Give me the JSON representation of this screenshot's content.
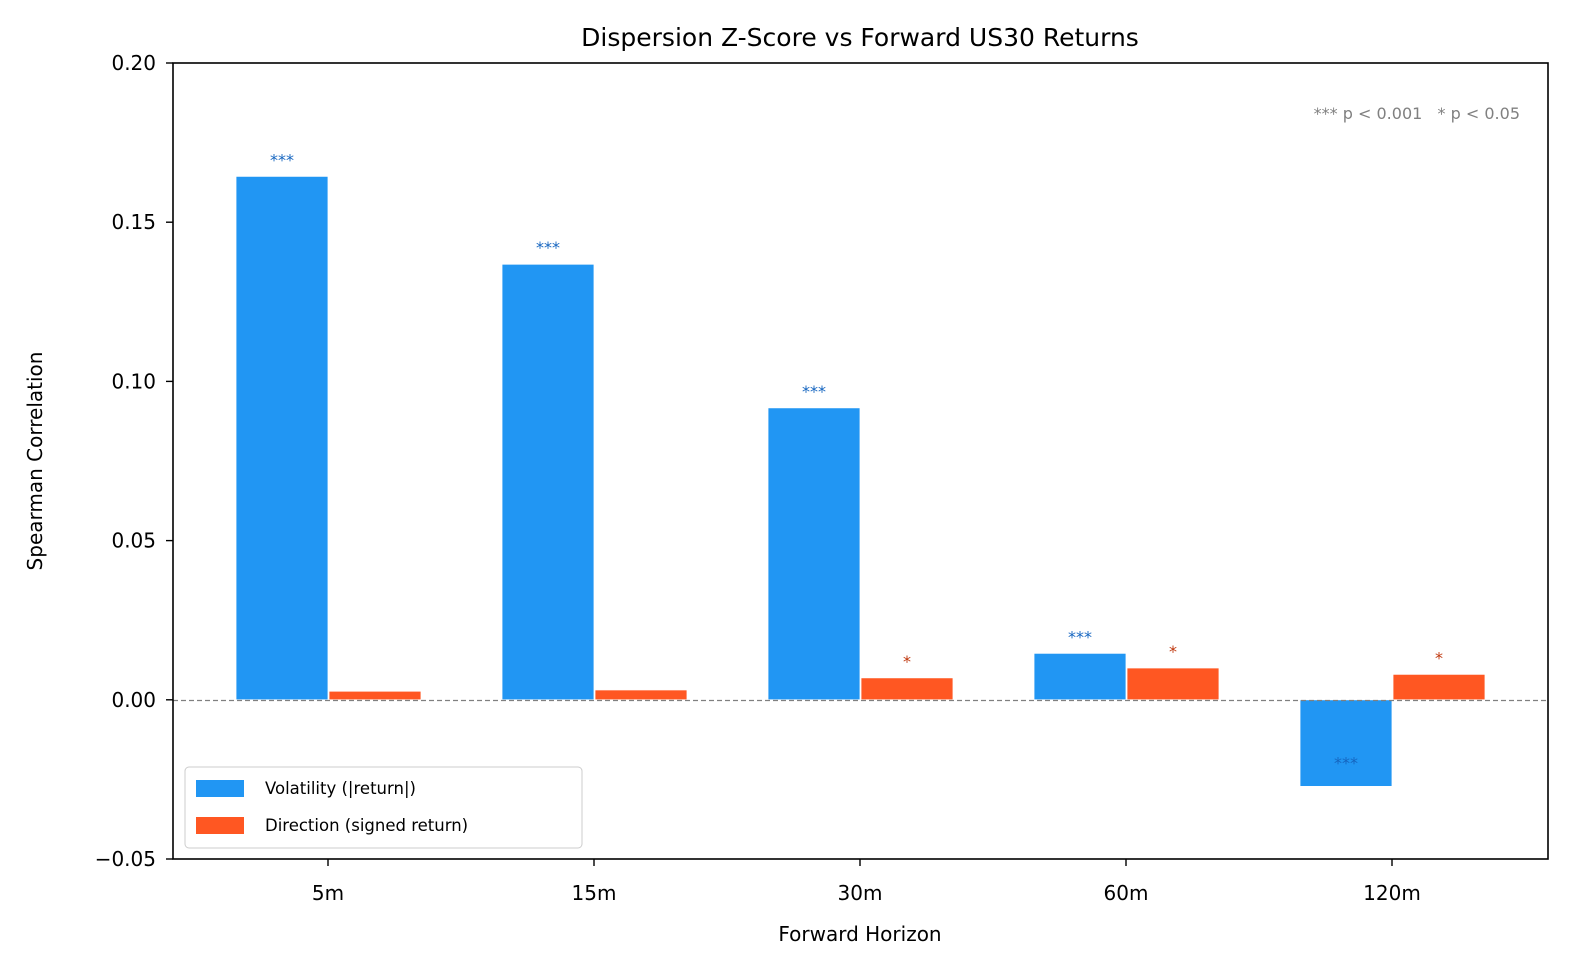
{
  "chart_data": {
    "type": "bar",
    "title": "Dispersion Z-Score vs Forward US30 Returns",
    "xlabel": "Forward Horizon",
    "ylabel": "Spearman Correlation",
    "categories": [
      "5m",
      "15m",
      "30m",
      "60m",
      "120m"
    ],
    "series": [
      {
        "name": "Volatility (|return|)",
        "color": "#2196F3",
        "values": [
          0.1644,
          0.1368,
          0.0917,
          0.0146,
          -0.0272
        ],
        "significance": [
          "***",
          "***",
          "***",
          "***",
          "***"
        ]
      },
      {
        "name": "Direction (signed return)",
        "color": "#FF5722",
        "values": [
          0.0027,
          0.0031,
          0.0069,
          0.01,
          0.008
        ],
        "significance": [
          "",
          "",
          "*",
          "*",
          "*"
        ]
      }
    ],
    "ylim": [
      -0.05,
      0.2
    ],
    "yticks": [
      -0.05,
      0.0,
      0.05,
      0.1,
      0.15,
      0.2
    ],
    "ytick_labels": [
      "−0.05",
      "0.00",
      "0.05",
      "0.10",
      "0.15",
      "0.20"
    ],
    "grid": false,
    "zero_line": {
      "style": "dashed",
      "color": "#808080"
    },
    "legend_position": "lower left",
    "annotation": "*** p < 0.001   * p < 0.05"
  }
}
